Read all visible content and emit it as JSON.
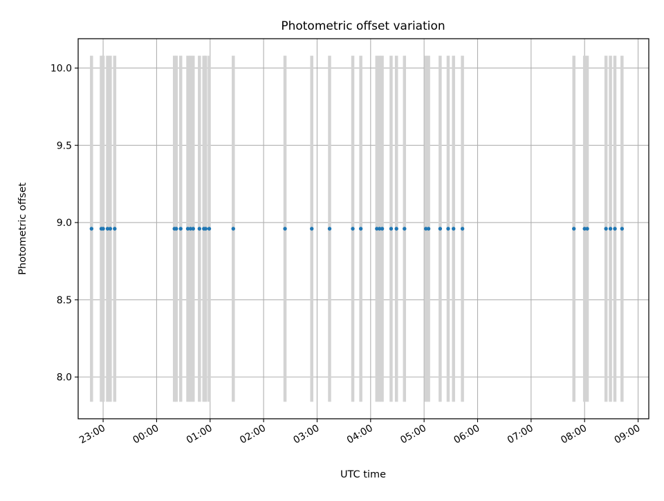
{
  "chart_data": {
    "type": "scatter",
    "title": "Photometric offset variation",
    "xlabel": "UTC time",
    "ylabel": "Photometric offset",
    "x_axis": {
      "kind": "time",
      "range": [
        "22:32",
        "09:12"
      ],
      "ticks": [
        "23:00",
        "00:00",
        "01:00",
        "02:00",
        "03:00",
        "04:00",
        "05:00",
        "06:00",
        "07:00",
        "08:00",
        "09:00"
      ]
    },
    "y_axis": {
      "range": [
        7.73,
        10.19
      ],
      "ticks": [
        "8.0",
        "8.5",
        "9.0",
        "9.5",
        "10.0"
      ]
    },
    "grid": true,
    "colors": {
      "points": "#1f77b4",
      "error_bars": "#d3d3d3",
      "grid": "#b0b0b0"
    },
    "error_bar_range": [
      7.84,
      10.08
    ],
    "series": [
      {
        "x": [
          "22:47",
          "22:58",
          "23:00",
          "23:05",
          "23:08",
          "23:13",
          "00:20",
          "00:22",
          "00:27",
          "00:35",
          "00:38",
          "00:41",
          "00:48",
          "00:53",
          "00:55",
          "00:59",
          "01:26",
          "02:24",
          "02:54",
          "03:14",
          "03:40",
          "03:49",
          "04:07",
          "04:10",
          "04:13",
          "04:23",
          "04:29",
          "04:38",
          "05:02",
          "05:05",
          "05:18",
          "05:27",
          "05:33",
          "05:43",
          "07:48",
          "08:00",
          "08:03",
          "08:24",
          "08:29",
          "08:34",
          "08:42"
        ],
        "y": [
          8.96,
          8.96,
          8.96,
          8.96,
          8.96,
          8.96,
          8.96,
          8.96,
          8.96,
          8.96,
          8.96,
          8.96,
          8.96,
          8.96,
          8.96,
          8.96,
          8.96,
          8.96,
          8.96,
          8.96,
          8.96,
          8.96,
          8.96,
          8.96,
          8.96,
          8.96,
          8.96,
          8.96,
          8.96,
          8.96,
          8.96,
          8.96,
          8.96,
          8.96,
          8.96,
          8.96,
          8.96,
          8.96,
          8.96,
          8.96,
          8.96
        ]
      }
    ]
  }
}
